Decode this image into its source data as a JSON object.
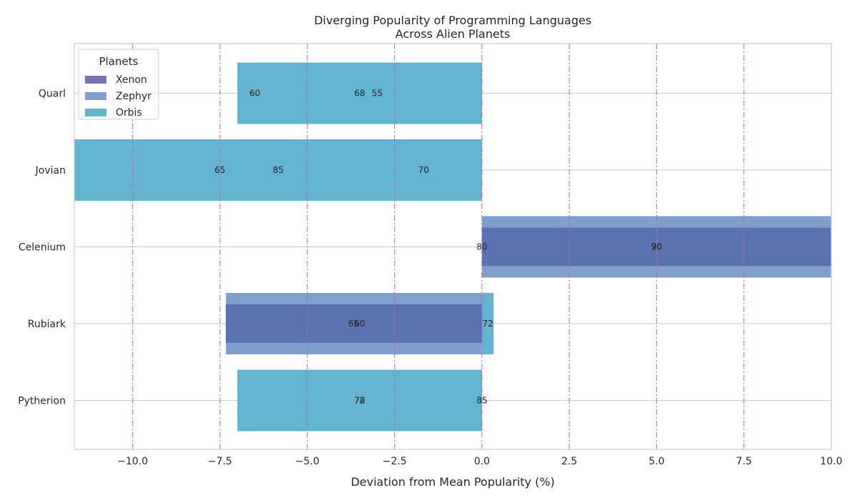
{
  "chart_data": {
    "type": "bar",
    "orientation": "horizontal",
    "title_lines": [
      "Diverging Popularity of Programming Languages",
      "Across Alien Planets"
    ],
    "xlabel": "Deviation from Mean Popularity (%)",
    "ylabel": "",
    "xlim": [
      -11.67,
      10.0
    ],
    "xticks": [
      -10.0,
      -7.5,
      -5.0,
      -2.5,
      0.0,
      2.5,
      5.0,
      7.5,
      10.0
    ],
    "xtick_labels": [
      "−10.0",
      "−7.5",
      "−5.0",
      "−2.5",
      "0.0",
      "2.5",
      "5.0",
      "7.5",
      "10.0"
    ],
    "categories": [
      "Quarl",
      "Jovian",
      "Celenium",
      "Rubiark",
      "Pytherion"
    ],
    "legend": {
      "title": "Planets",
      "placement": "top-left"
    },
    "grid": {
      "horizontal": true,
      "vertical": "dash-dot magenta"
    },
    "series": [
      {
        "name": "Xenon",
        "color": "#7b73b5",
        "bar_height": 0.5,
        "values": [
          -7.0,
          -11.67,
          10.0,
          -7.33,
          -7.0
        ],
        "labels": [
          68,
          70,
          70,
          60,
          78
        ],
        "label_pos": [
          -3.5,
          -1.67,
          5.0,
          -3.5,
          -3.5
        ]
      },
      {
        "name": "Zephyr",
        "color": "#7f9fcc",
        "bar_height": 0.8,
        "values": [
          -7.0,
          -11.67,
          10.0,
          -7.33,
          -7.0
        ],
        "labels": [
          55,
          85,
          90,
          65,
          72
        ],
        "label_pos": [
          -3.0,
          -5.83,
          5.0,
          -3.67,
          -3.5
        ]
      },
      {
        "name": "Orbis",
        "color": "#63b4cf",
        "bar_height": 0.8,
        "values": [
          -7.0,
          -11.67,
          0.0,
          0.33,
          -7.0
        ],
        "labels": [
          60,
          65,
          80,
          72,
          85
        ],
        "label_pos": [
          -6.5,
          -7.5,
          0.0,
          0.17,
          0.0
        ]
      }
    ],
    "overlap_color": "#5a73b0"
  }
}
